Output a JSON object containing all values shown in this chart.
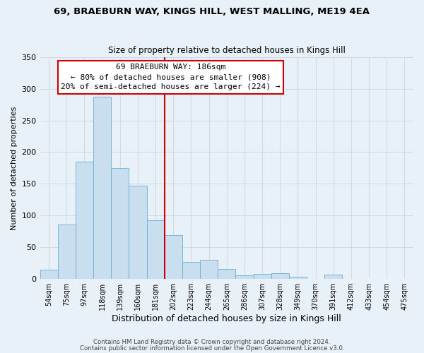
{
  "title1": "69, BRAEBURN WAY, KINGS HILL, WEST MALLING, ME19 4EA",
  "title2": "Size of property relative to detached houses in Kings Hill",
  "xlabel": "Distribution of detached houses by size in Kings Hill",
  "ylabel": "Number of detached properties",
  "bar_labels": [
    "54sqm",
    "75sqm",
    "97sqm",
    "118sqm",
    "139sqm",
    "160sqm",
    "181sqm",
    "202sqm",
    "223sqm",
    "244sqm",
    "265sqm",
    "286sqm",
    "307sqm",
    "328sqm",
    "349sqm",
    "370sqm",
    "391sqm",
    "412sqm",
    "433sqm",
    "454sqm",
    "475sqm"
  ],
  "bar_values": [
    14,
    86,
    185,
    288,
    175,
    147,
    92,
    69,
    27,
    30,
    15,
    5,
    7,
    9,
    3,
    0,
    6,
    0,
    0,
    0,
    0
  ],
  "bar_color": "#c9dff0",
  "bar_edge_color": "#6baed6",
  "vline_color": "#cc0000",
  "annotation_title": "69 BRAEBURN WAY: 186sqm",
  "annotation_line1": "← 80% of detached houses are smaller (908)",
  "annotation_line2": "20% of semi-detached houses are larger (224) →",
  "annotation_box_color": "#ffffff",
  "annotation_box_edge_color": "#cc0000",
  "ylim": [
    0,
    350
  ],
  "yticks": [
    0,
    50,
    100,
    150,
    200,
    250,
    300,
    350
  ],
  "grid_color": "#d0d8e4",
  "background_color": "#e8f0f8",
  "footer1": "Contains HM Land Registry data © Crown copyright and database right 2024.",
  "footer2": "Contains public sector information licensed under the Open Government Licence v3.0."
}
